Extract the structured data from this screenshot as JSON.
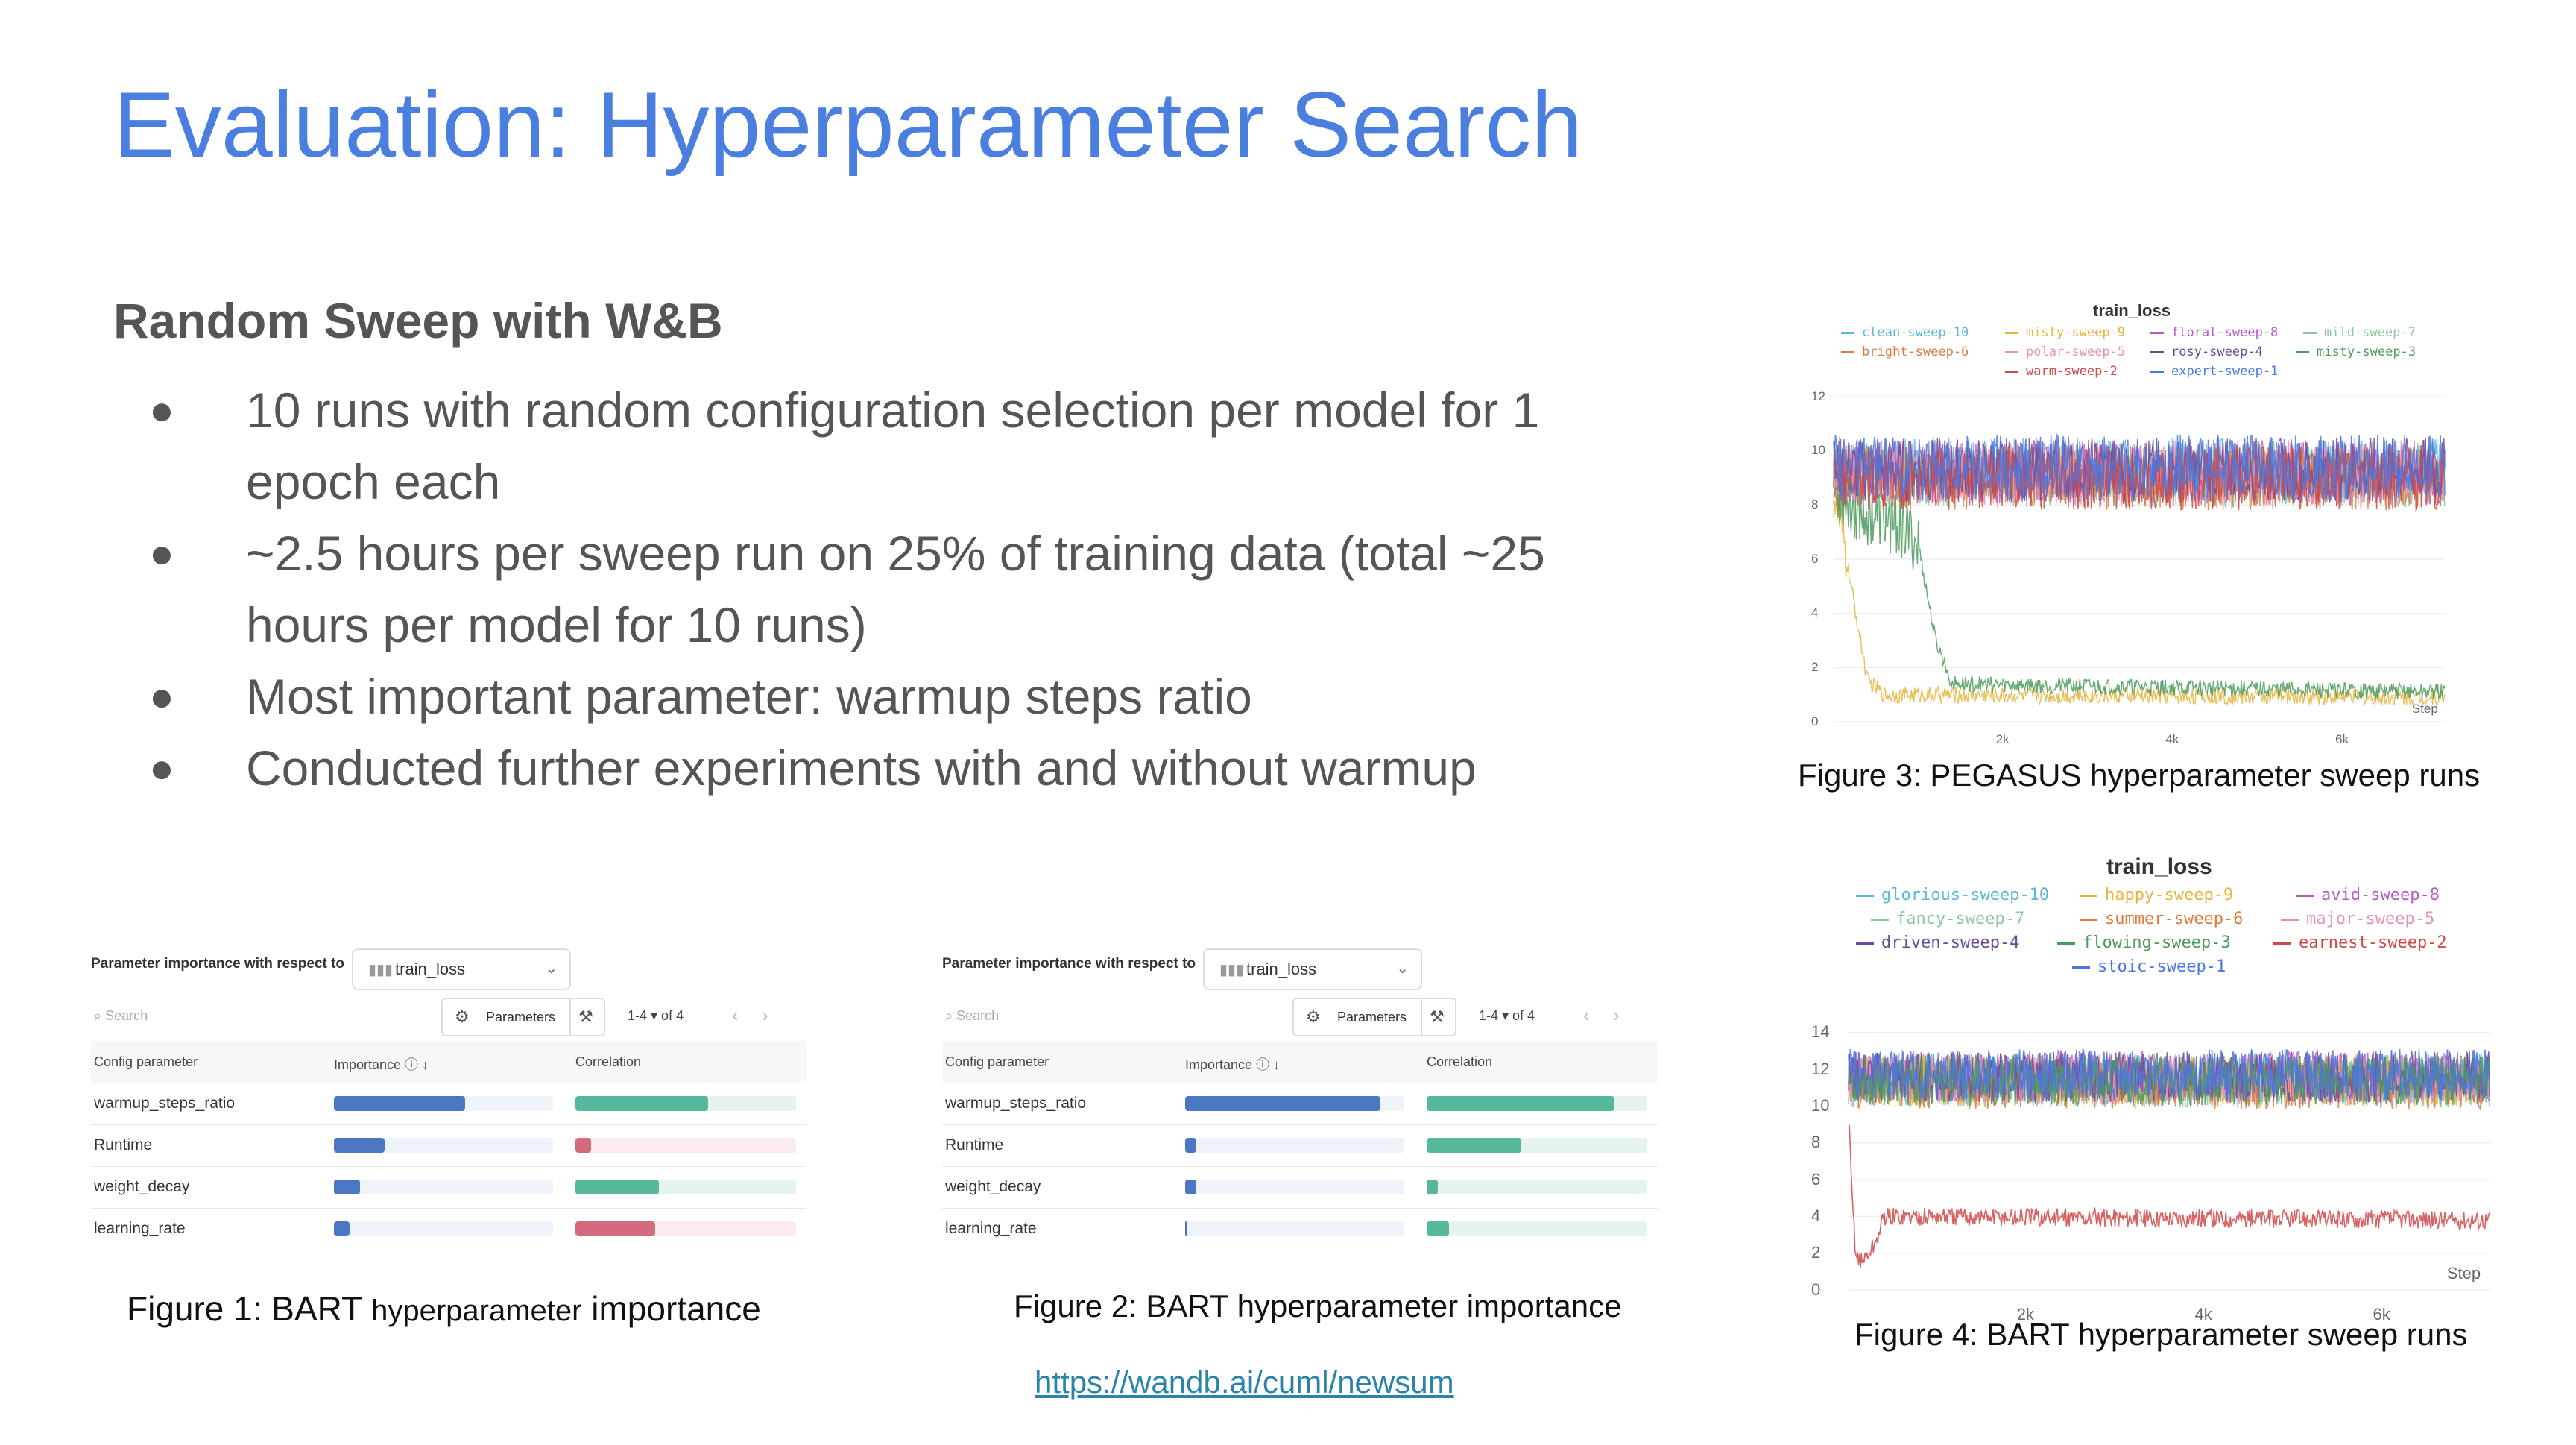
{
  "slide": {
    "title": "Evaluation: Hyperparameter Search",
    "subtitle": "Random Sweep with W&B",
    "bullets": [
      "10 runs with random configuration selection per model for 1 epoch each",
      "~2.5 hours per sweep run on 25% of training data (total ~25 hours per model for 10 runs)",
      "Most important parameter: warmup steps ratio",
      "Conducted further experiments with and without warmup"
    ],
    "link": "https://wandb.ai/cuml/newsum"
  },
  "figure1": {
    "caption_a": "Figure 1: BART ",
    "caption_b": "hyperparameter",
    "caption_c": " importance",
    "header": "Parameter importance with respect to",
    "metric": "train_loss",
    "search_placeholder": "Search",
    "parameters_label": "Parameters",
    "pager": "1-4 ▾   of 4",
    "col_param": "Config parameter",
    "col_importance": "Importance ⓘ ↓",
    "col_correlation": "Correlation",
    "rows": [
      {
        "name": "warmup_steps_ratio",
        "importance": 0.6,
        "correlation": 0.6
      },
      {
        "name": "Runtime",
        "importance": 0.23,
        "correlation": -0.07
      },
      {
        "name": "weight_decay",
        "importance": 0.12,
        "correlation": 0.38
      },
      {
        "name": "learning_rate",
        "importance": 0.07,
        "correlation": -0.36
      }
    ]
  },
  "figure2": {
    "caption": "Figure 2: BART hyperparameter importance",
    "header": "Parameter importance with respect to",
    "metric": "train_loss",
    "search_placeholder": "Search",
    "parameters_label": "Parameters",
    "pager": "1-4 ▾   of 4",
    "col_param": "Config parameter",
    "col_importance": "Importance ⓘ ↓",
    "col_correlation": "Correlation",
    "rows": [
      {
        "name": "warmup_steps_ratio",
        "importance": 0.89,
        "correlation": 0.85
      },
      {
        "name": "Runtime",
        "importance": 0.05,
        "correlation": 0.43
      },
      {
        "name": "weight_decay",
        "importance": 0.05,
        "correlation": 0.05
      },
      {
        "name": "learning_rate",
        "importance": 0.01,
        "correlation": 0.1
      }
    ]
  },
  "figure3": {
    "caption": "Figure 3: PEGASUS hyperparameter sweep runs",
    "x_tick_label": "Step"
  },
  "figure4": {
    "caption": "Figure 4: BART hyperparameter sweep runs",
    "x_tick_label": "Step"
  },
  "chart_data": [
    {
      "type": "line",
      "title": "train_loss",
      "xlabel": "",
      "ylabel": "",
      "xlim": [
        0,
        7200
      ],
      "ylim": [
        0,
        12
      ],
      "yticks": [
        0,
        2,
        4,
        6,
        8,
        10,
        12
      ],
      "xticks": [
        {
          "value": 2000,
          "label": "2k"
        },
        {
          "value": 4000,
          "label": "4k"
        },
        {
          "value": 6000,
          "label": "6k"
        }
      ],
      "grid": true,
      "legend": "top",
      "series": [
        {
          "name": "clean-sweep-10",
          "color": "#5bb8d8",
          "x": [
            0,
            7200
          ],
          "y": [
            9.3,
            9.3
          ]
        },
        {
          "name": "misty-sweep-9",
          "color": "#e8b43c",
          "x": [
            0,
            150,
            400,
            600,
            7200
          ],
          "y": [
            8.5,
            6.0,
            1.5,
            1.0,
            0.9
          ]
        },
        {
          "name": "floral-sweep-8",
          "color": "#b65ac4",
          "x": [
            0,
            7200
          ],
          "y": [
            9.2,
            9.2
          ]
        },
        {
          "name": "mild-sweep-7",
          "color": "#8cc8a0",
          "x": [
            0,
            7200
          ],
          "y": [
            9.1,
            9.1
          ]
        },
        {
          "name": "bright-sweep-6",
          "color": "#e07a3c",
          "x": [
            0,
            7200
          ],
          "y": [
            9.0,
            9.0
          ]
        },
        {
          "name": "polar-sweep-5",
          "color": "#e890b8",
          "x": [
            0,
            7200
          ],
          "y": [
            9.2,
            9.2
          ]
        },
        {
          "name": "rosy-sweep-4",
          "color": "#6a4a9c",
          "x": [
            0,
            7200
          ],
          "y": [
            9.3,
            9.3
          ]
        },
        {
          "name": "misty-sweep-3",
          "color": "#4c9a5c",
          "x": [
            0,
            300,
            800,
            1000,
            1200,
            1400,
            7200
          ],
          "y": [
            8.5,
            7.8,
            7.2,
            6.5,
            3.0,
            1.4,
            1.1
          ]
        },
        {
          "name": "warm-sweep-2",
          "color": "#d04848",
          "x": [
            0,
            7200
          ],
          "y": [
            9.0,
            9.0
          ]
        },
        {
          "name": "expert-sweep-1",
          "color": "#4a78e0",
          "x": [
            0,
            7200
          ],
          "y": [
            9.4,
            9.4
          ]
        }
      ]
    },
    {
      "type": "line",
      "title": "train_loss",
      "xlabel": "",
      "ylabel": "",
      "xlim": [
        0,
        7200
      ],
      "ylim": [
        0,
        15
      ],
      "yticks": [
        0,
        2,
        4,
        6,
        8,
        10,
        12,
        14
      ],
      "xticks": [
        {
          "value": 2000,
          "label": "2k"
        },
        {
          "value": 4000,
          "label": "4k"
        },
        {
          "value": 6000,
          "label": "6k"
        }
      ],
      "grid": true,
      "legend": "top",
      "series": [
        {
          "name": "glorious-sweep-10",
          "color": "#5bb8d8",
          "x": [
            0,
            7200
          ],
          "y": [
            11.5,
            11.5
          ]
        },
        {
          "name": "happy-sweep-9",
          "color": "#e8b43c",
          "x": [
            0,
            7200
          ],
          "y": [
            11.4,
            11.4
          ]
        },
        {
          "name": "avid-sweep-8",
          "color": "#b65ac4",
          "x": [
            0,
            7200
          ],
          "y": [
            11.6,
            11.6
          ]
        },
        {
          "name": "fancy-sweep-7",
          "color": "#8cc8a0",
          "x": [
            0,
            7200
          ],
          "y": [
            11.3,
            11.3
          ]
        },
        {
          "name": "summer-sweep-6",
          "color": "#e07a3c",
          "x": [
            0,
            7200
          ],
          "y": [
            11.2,
            11.2
          ]
        },
        {
          "name": "major-sweep-5",
          "color": "#e890b8",
          "x": [
            0,
            7200
          ],
          "y": [
            11.5,
            11.5
          ]
        },
        {
          "name": "driven-sweep-4",
          "color": "#6a4a9c",
          "x": [
            0,
            7200
          ],
          "y": [
            11.6,
            11.6
          ]
        },
        {
          "name": "flowing-sweep-3",
          "color": "#4c9a5c",
          "x": [
            0,
            7200
          ],
          "y": [
            11.4,
            11.4
          ]
        },
        {
          "name": "earnest-sweep-2",
          "color": "#d04848",
          "x": [
            0,
            80,
            150,
            300,
            400,
            7200
          ],
          "y": [
            8.5,
            2.0,
            1.5,
            2.5,
            4.0,
            3.8
          ]
        },
        {
          "name": "stoic-sweep-1",
          "color": "#4a78e0",
          "x": [
            0,
            7200
          ],
          "y": [
            11.7,
            11.7
          ]
        }
      ]
    }
  ]
}
